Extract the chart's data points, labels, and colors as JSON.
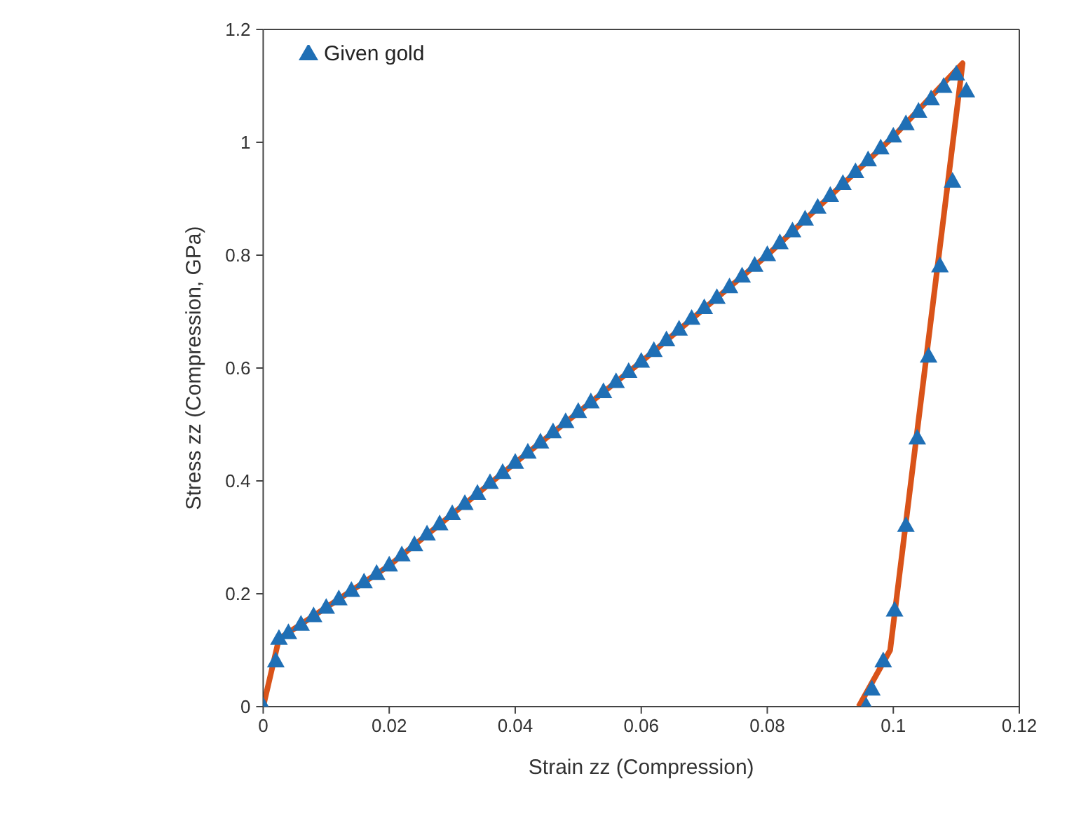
{
  "chart_data": {
    "type": "scatter",
    "xlabel": "Strain zz (Compression)",
    "ylabel": "Stress zz (Compression, GPa)",
    "xlim": [
      0,
      0.12
    ],
    "ylim": [
      0,
      1.2
    ],
    "xticks": [
      0,
      0.02,
      0.04,
      0.06,
      0.08,
      0.1,
      0.12
    ],
    "yticks": [
      0,
      0.2,
      0.4,
      0.6,
      0.8,
      1,
      1.2
    ],
    "grid": false,
    "legend": "top left",
    "series": [
      {
        "name": "Given gold",
        "marker": "triangle",
        "color": "#1f6fb5",
        "x": [
          0,
          0.002,
          0.0025,
          0.004,
          0.006,
          0.008,
          0.01,
          0.012,
          0.014,
          0.016,
          0.018,
          0.02,
          0.022,
          0.024,
          0.026,
          0.028,
          0.03,
          0.032,
          0.034,
          0.036,
          0.038,
          0.04,
          0.042,
          0.044,
          0.046,
          0.048,
          0.05,
          0.052,
          0.054,
          0.056,
          0.058,
          0.06,
          0.062,
          0.064,
          0.066,
          0.068,
          0.07,
          0.072,
          0.074,
          0.076,
          0.078,
          0.08,
          0.082,
          0.084,
          0.086,
          0.088,
          0.09,
          0.092,
          0.094,
          0.096,
          0.098,
          0.1,
          0.102,
          0.104,
          0.106,
          0.108,
          0.11,
          0.1116,
          0.1094,
          0.1074,
          0.1056,
          0.1038,
          0.102,
          0.1002,
          0.0984,
          0.0966,
          0.0957
        ],
        "values": [
          0,
          0.08,
          0.12,
          0.13,
          0.145,
          0.16,
          0.175,
          0.19,
          0.205,
          0.22,
          0.235,
          0.25,
          0.268,
          0.286,
          0.305,
          0.323,
          0.341,
          0.359,
          0.377,
          0.396,
          0.414,
          0.432,
          0.45,
          0.468,
          0.486,
          0.504,
          0.522,
          0.539,
          0.557,
          0.575,
          0.593,
          0.611,
          0.63,
          0.649,
          0.668,
          0.687,
          0.706,
          0.724,
          0.743,
          0.762,
          0.781,
          0.8,
          0.821,
          0.842,
          0.863,
          0.884,
          0.905,
          0.926,
          0.947,
          0.968,
          0.989,
          1.01,
          1.032,
          1.054,
          1.076,
          1.098,
          1.12,
          1.09,
          0.93,
          0.78,
          0.62,
          0.475,
          0.32,
          0.17,
          0.08,
          0.03,
          0
        ]
      },
      {
        "type": "line",
        "marker": "none",
        "line_style": "solid",
        "color": "#d95319",
        "x": [
          0,
          0.0025,
          0.02,
          0.04,
          0.06,
          0.08,
          0.1,
          0.111,
          0.0995,
          0.0945
        ],
        "values": [
          0,
          0.12,
          0.25,
          0.432,
          0.611,
          0.8,
          1.01,
          1.14,
          0.1,
          0
        ]
      }
    ]
  }
}
